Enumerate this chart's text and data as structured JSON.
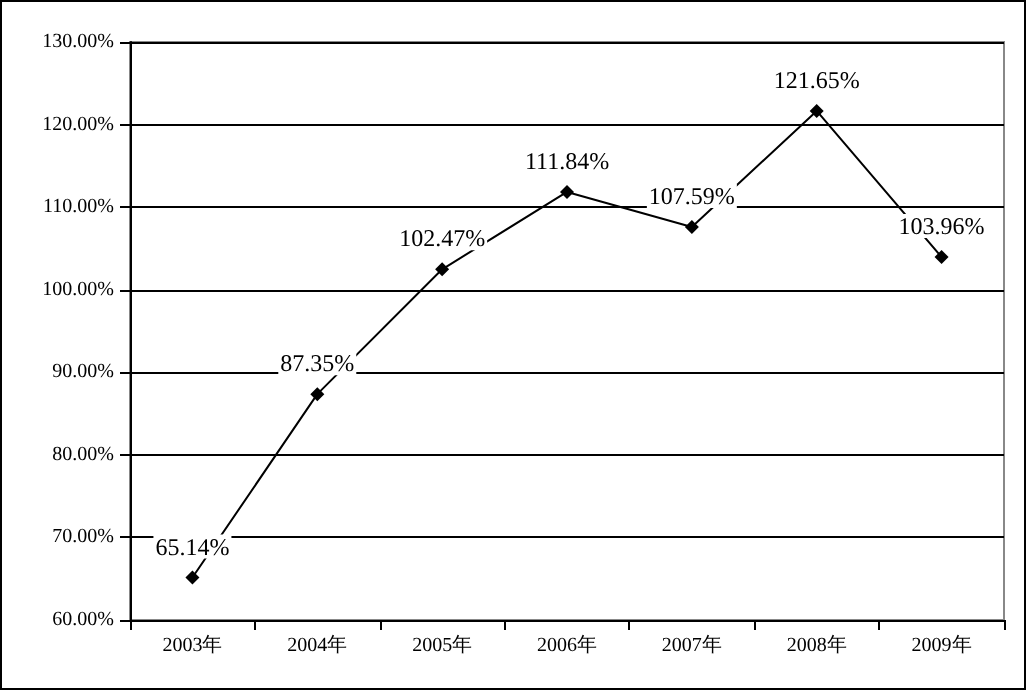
{
  "chart_data": {
    "type": "line",
    "categories": [
      "2003年",
      "2004年",
      "2005年",
      "2006年",
      "2007年",
      "2008年",
      "2009年"
    ],
    "series": [
      {
        "color": "#000000",
        "values": [
          65.14,
          87.35,
          102.47,
          111.84,
          107.59,
          121.65,
          103.96
        ],
        "value_labels": [
          "65.14%",
          "87.35%",
          "102.47%",
          "111.84%",
          "107.59%",
          "121.65%",
          "103.96%"
        ]
      }
    ],
    "ylim": [
      60,
      130
    ],
    "yticks": [
      {
        "value": 60,
        "label": "60.00%"
      },
      {
        "value": 70,
        "label": "70.00%"
      },
      {
        "value": 80,
        "label": "80.00%"
      },
      {
        "value": 90,
        "label": "90.00%"
      },
      {
        "value": 100,
        "label": "100.00%"
      },
      {
        "value": 110,
        "label": "110.00%"
      },
      {
        "value": 120,
        "label": "120.00%"
      },
      {
        "value": 130,
        "label": "130.00%"
      }
    ],
    "grid": "y",
    "marker": "diamond",
    "line_style": "solid"
  }
}
